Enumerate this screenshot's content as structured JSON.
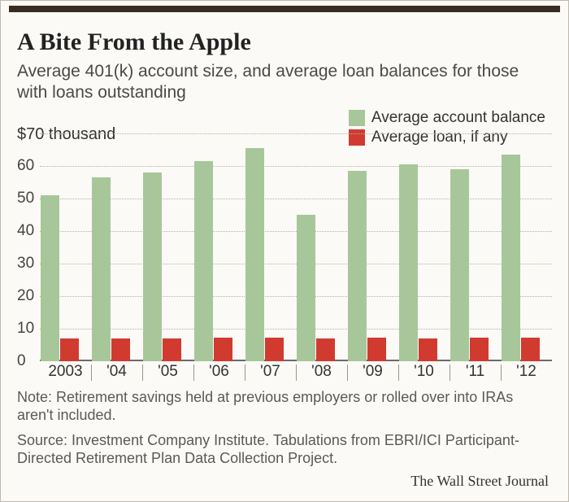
{
  "title": "A Bite From the Apple",
  "title_fontsize": 30,
  "subtitle": "Average 401(k) account size, and average loan balances for those with loans outstanding",
  "subtitle_fontsize": 21,
  "note": "Note: Retirement savings held at previous employers or rolled over into IRAs aren't included.",
  "source": "Source: Investment Company Institute. Tabulations from EBRI/ICI Participant-Directed Retirement Plan Data Collection Project.",
  "attribution": "The Wall Street Journal",
  "footer_fontsize": 18,
  "legend": {
    "account": {
      "label": "Average account balance",
      "color": "#a7c79a"
    },
    "loan": {
      "label": "Average loan, if any",
      "color": "#d13a2f"
    }
  },
  "chart": {
    "type": "bar",
    "background_color": "#fbfaf6",
    "grid_color": "#b7b2a6",
    "axis_color": "#6b6b6b",
    "y_axis_title": "$70 thousand",
    "ymin": 0,
    "ymax": 70,
    "ytick_step": 10,
    "ytick_labels": [
      "0",
      "10",
      "20",
      "30",
      "40",
      "50",
      "60",
      ""
    ],
    "categories": [
      "2003",
      "'04",
      "'05",
      "'06",
      "'07",
      "'08",
      "'09",
      "'10",
      "'11",
      "'12"
    ],
    "series": {
      "account": {
        "color": "#a7c79a",
        "values": [
          51,
          56.5,
          58,
          61.5,
          65.5,
          45,
          58.5,
          60.5,
          59,
          63.5
        ]
      },
      "loan": {
        "color": "#d13a2f",
        "values": [
          6.8,
          6.9,
          6.9,
          7.1,
          7.2,
          7.0,
          7.1,
          7.0,
          7.1,
          7.2
        ]
      }
    },
    "bar_width_ratio": 0.36,
    "account_offset_ratio": 0.02,
    "loan_offset_ratio": 0.4
  }
}
